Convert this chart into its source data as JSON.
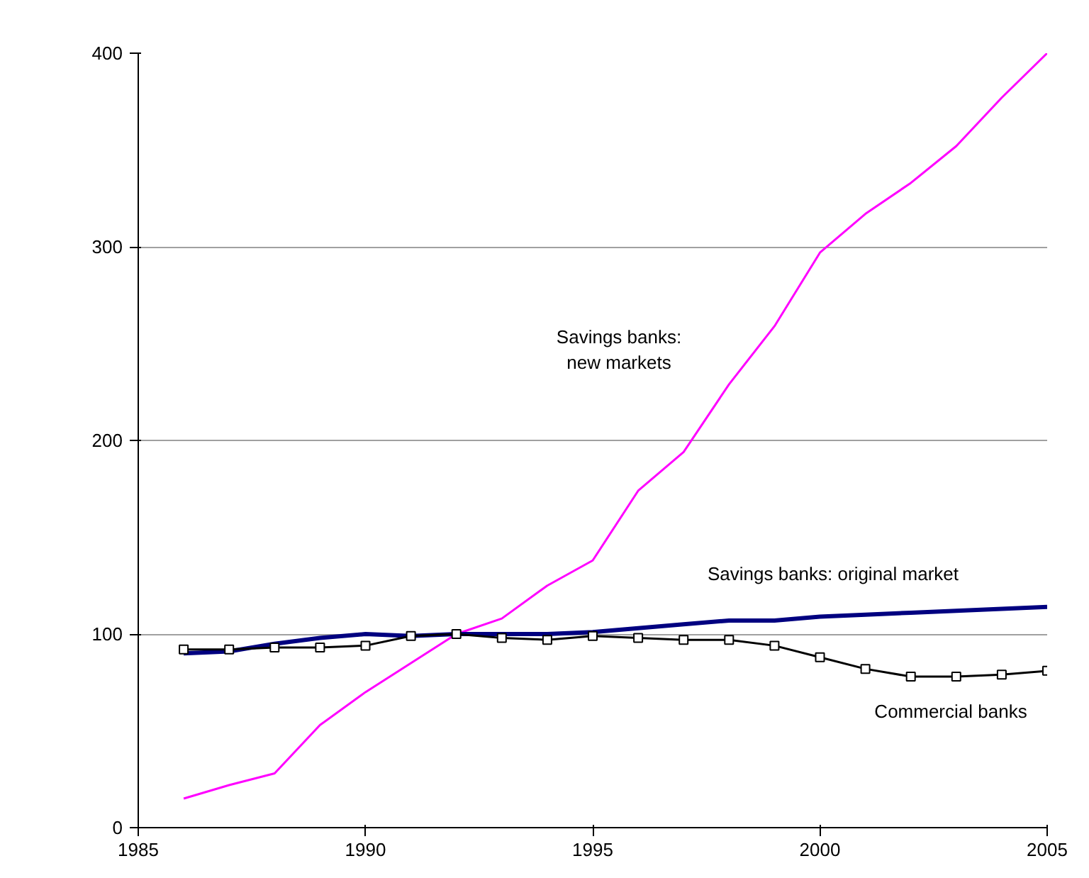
{
  "chart_data": {
    "type": "line",
    "x": [
      1986,
      1987,
      1988,
      1989,
      1990,
      1991,
      1992,
      1993,
      1994,
      1995,
      1996,
      1997,
      1998,
      1999,
      2000,
      2001,
      2002,
      2003,
      2004,
      2005
    ],
    "series": [
      {
        "name": "Savings banks:\nnew markets",
        "color": "#ff00ff",
        "marker": "none",
        "values": [
          15,
          22,
          28,
          53,
          70,
          85,
          100,
          108,
          125,
          138,
          174,
          194,
          229,
          259,
          297,
          317,
          333,
          352,
          377,
          400
        ]
      },
      {
        "name": "Savings banks: original market",
        "color": "#000080",
        "marker": "none",
        "values": [
          90,
          91,
          95,
          98,
          100,
          99,
          100,
          100,
          100,
          101,
          103,
          105,
          107,
          107,
          109,
          110,
          111,
          112,
          113,
          114
        ]
      },
      {
        "name": "Commercial banks",
        "color": "#000000",
        "marker": "square",
        "values": [
          92,
          92,
          93,
          93,
          94,
          99,
          100,
          98,
          97,
          99,
          98,
          97,
          97,
          94,
          88,
          82,
          78,
          78,
          79,
          81
        ]
      }
    ],
    "xlim": [
      1985,
      2005
    ],
    "xticks": [
      1985,
      1990,
      1995,
      2000,
      2005
    ],
    "ylim": [
      0,
      400
    ],
    "yticks": [
      0,
      100,
      200,
      300,
      400
    ],
    "grid": "y"
  }
}
